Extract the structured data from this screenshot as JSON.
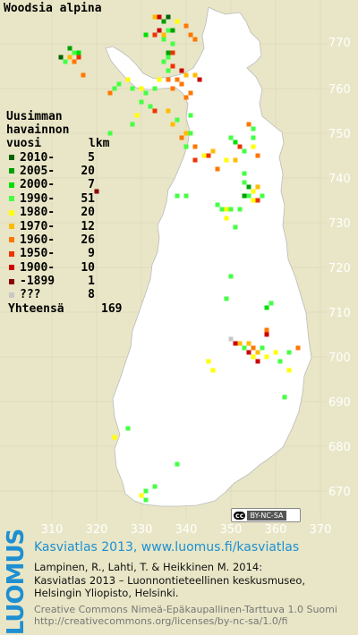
{
  "title": "Woodsia alpina",
  "legend": {
    "header": [
      "Uusimman",
      "havainnon"
    ],
    "col_year": "vuosi",
    "col_count": "lkm",
    "items": [
      {
        "label": "2010-",
        "count": "5",
        "color": "#006400"
      },
      {
        "label": "2005-",
        "count": "20",
        "color": "#00a000"
      },
      {
        "label": "2000-",
        "count": "7",
        "color": "#00e000"
      },
      {
        "label": "1990-",
        "count": "51",
        "color": "#44ff44"
      },
      {
        "label": "1980-",
        "count": "20",
        "color": "#ffff00"
      },
      {
        "label": "1970-",
        "count": "12",
        "color": "#ffbb00"
      },
      {
        "label": "1960-",
        "count": "26",
        "color": "#ff7700"
      },
      {
        "label": "1950-",
        "count": "9",
        "color": "#ee3300"
      },
      {
        "label": "1900-",
        "count": "10",
        "color": "#cc0000"
      },
      {
        "label": "-1899",
        "count": "1",
        "color": "#880000"
      },
      {
        "label": "???",
        "count": "8",
        "color": "#c8c8c8"
      }
    ],
    "total_label": "Yhteensä",
    "total_count": "169"
  },
  "y_ticks": [
    "770",
    "760",
    "750",
    "740",
    "730",
    "720",
    "710",
    "700",
    "690",
    "680",
    "670"
  ],
  "x_ticks": [
    "310",
    "320",
    "330",
    "340",
    "350",
    "360",
    "370"
  ],
  "license_badge": {
    "cc": "cc",
    "text": "BY-NC-SA"
  },
  "logo_text": "LUOMUS",
  "footer": {
    "title": "Kasviatlas 2013, www.luomus.fi/kasviatlas",
    "cite1": "Lampinen, R., Lahti, T. & Heikkinen M. 2014:",
    "cite2": "Kasviatlas 2013 – Luonnontieteellinen keskusmuseo,",
    "cite3": "Helsingin Yliopisto, Helsinki.",
    "license1": "Creative Commons Nimeä-Epäkaupallinen-Tarttuva 1.0 Suomi",
    "license2": "http://creativecommons.org/licenses/by-nc-sa/1.0/fi"
  },
  "observations": [
    {
      "e": 333,
      "n": 776,
      "c": 5
    },
    {
      "e": 334,
      "n": 776,
      "c": 8
    },
    {
      "e": 335,
      "n": 775,
      "c": 1
    },
    {
      "e": 336,
      "n": 776,
      "c": 0
    },
    {
      "e": 338,
      "n": 775,
      "c": 4
    },
    {
      "e": 340,
      "n": 774,
      "c": 6
    },
    {
      "e": 336,
      "n": 773,
      "c": 3
    },
    {
      "e": 337,
      "n": 773,
      "c": 1
    },
    {
      "e": 333,
      "n": 772,
      "c": 7
    },
    {
      "e": 334,
      "n": 773,
      "c": 8
    },
    {
      "e": 335,
      "n": 772,
      "c": 5
    },
    {
      "e": 341,
      "n": 772,
      "c": 6
    },
    {
      "e": 342,
      "n": 771,
      "c": 6
    },
    {
      "e": 331,
      "n": 772,
      "c": 2
    },
    {
      "e": 335,
      "n": 771,
      "c": 3
    },
    {
      "e": 337,
      "n": 770,
      "c": 3
    },
    {
      "e": 336,
      "n": 768,
      "c": 1
    },
    {
      "e": 336,
      "n": 767,
      "c": 3
    },
    {
      "e": 337,
      "n": 768,
      "c": 7
    },
    {
      "e": 335,
      "n": 766,
      "c": 3
    },
    {
      "e": 336,
      "n": 764,
      "c": 3
    },
    {
      "e": 337,
      "n": 765,
      "c": 7
    },
    {
      "e": 339,
      "n": 764,
      "c": 8
    },
    {
      "e": 336,
      "n": 762,
      "c": 6
    },
    {
      "e": 338,
      "n": 762,
      "c": 6
    },
    {
      "e": 339,
      "n": 761,
      "c": 6
    },
    {
      "e": 340,
      "n": 763,
      "c": 5
    },
    {
      "e": 342,
      "n": 763,
      "c": 5
    },
    {
      "e": 343,
      "n": 762,
      "c": 8
    },
    {
      "e": 337,
      "n": 760,
      "c": 6
    },
    {
      "e": 340,
      "n": 758,
      "c": 6
    },
    {
      "e": 341,
      "n": 759,
      "c": 6
    },
    {
      "e": 333,
      "n": 760,
      "c": 3
    },
    {
      "e": 334,
      "n": 762,
      "c": 4
    },
    {
      "e": 330,
      "n": 760,
      "c": 4
    },
    {
      "e": 331,
      "n": 759,
      "c": 3
    },
    {
      "e": 327,
      "n": 762,
      "c": 4
    },
    {
      "e": 328,
      "n": 760,
      "c": 3
    },
    {
      "e": 324,
      "n": 760,
      "c": 3
    },
    {
      "e": 325,
      "n": 761,
      "c": 3
    },
    {
      "e": 323,
      "n": 759,
      "c": 6
    },
    {
      "e": 317,
      "n": 763,
      "c": 6
    },
    {
      "e": 314,
      "n": 769,
      "c": 1
    },
    {
      "e": 315,
      "n": 768,
      "c": 3
    },
    {
      "e": 316,
      "n": 767,
      "c": 7
    },
    {
      "e": 314,
      "n": 767,
      "c": 5
    },
    {
      "e": 315,
      "n": 766,
      "c": 6
    },
    {
      "e": 316,
      "n": 768,
      "c": 2
    },
    {
      "e": 313,
      "n": 766,
      "c": 3
    },
    {
      "e": 312,
      "n": 767,
      "c": 0
    },
    {
      "e": 330,
      "n": 757,
      "c": 3
    },
    {
      "e": 332,
      "n": 756,
      "c": 3
    },
    {
      "e": 333,
      "n": 755,
      "c": 7
    },
    {
      "e": 329,
      "n": 754,
      "c": 4
    },
    {
      "e": 328,
      "n": 752,
      "c": 3
    },
    {
      "e": 336,
      "n": 755,
      "c": 5
    },
    {
      "e": 337,
      "n": 752,
      "c": 5
    },
    {
      "e": 338,
      "n": 753,
      "c": 3
    },
    {
      "e": 339,
      "n": 749,
      "c": 6
    },
    {
      "e": 340,
      "n": 750,
      "c": 5
    },
    {
      "e": 341,
      "n": 750,
      "c": 3
    },
    {
      "e": 342,
      "n": 747,
      "c": 6
    },
    {
      "e": 344,
      "n": 745,
      "c": 4
    },
    {
      "e": 345,
      "n": 745,
      "c": 7
    },
    {
      "e": 346,
      "n": 746,
      "c": 5
    },
    {
      "e": 347,
      "n": 742,
      "c": 6
    },
    {
      "e": 349,
      "n": 744,
      "c": 4
    },
    {
      "e": 350,
      "n": 749,
      "c": 3
    },
    {
      "e": 351,
      "n": 748,
      "c": 2
    },
    {
      "e": 352,
      "n": 747,
      "c": 7
    },
    {
      "e": 353,
      "n": 746,
      "c": 3
    },
    {
      "e": 354,
      "n": 752,
      "c": 6
    },
    {
      "e": 355,
      "n": 751,
      "c": 3
    },
    {
      "e": 355,
      "n": 749,
      "c": 3
    },
    {
      "e": 355,
      "n": 747,
      "c": 4
    },
    {
      "e": 356,
      "n": 745,
      "c": 6
    },
    {
      "e": 351,
      "n": 744,
      "c": 5
    },
    {
      "e": 353,
      "n": 741,
      "c": 3
    },
    {
      "e": 353,
      "n": 739,
      "c": 3
    },
    {
      "e": 354,
      "n": 738,
      "c": 1
    },
    {
      "e": 355,
      "n": 737,
      "c": 4
    },
    {
      "e": 356,
      "n": 738,
      "c": 5
    },
    {
      "e": 357,
      "n": 736,
      "c": 3
    },
    {
      "e": 355,
      "n": 735,
      "c": 4
    },
    {
      "e": 356,
      "n": 735,
      "c": 7
    },
    {
      "e": 354,
      "n": 736,
      "c": 3
    },
    {
      "e": 353,
      "n": 736,
      "c": 1
    },
    {
      "e": 348,
      "n": 733,
      "c": 3
    },
    {
      "e": 349,
      "n": 733,
      "c": 4
    },
    {
      "e": 350,
      "n": 733,
      "c": 3
    },
    {
      "e": 349,
      "n": 731,
      "c": 4
    },
    {
      "e": 352,
      "n": 733,
      "c": 3
    },
    {
      "e": 351,
      "n": 729,
      "c": 3
    },
    {
      "e": 347,
      "n": 734,
      "c": 3
    },
    {
      "e": 340,
      "n": 736,
      "c": 3
    },
    {
      "e": 338,
      "n": 736,
      "c": 3
    },
    {
      "e": 342,
      "n": 744,
      "c": 7
    },
    {
      "e": 340,
      "n": 747,
      "c": 3
    },
    {
      "e": 341,
      "n": 754,
      "c": 3
    },
    {
      "e": 323,
      "n": 750,
      "c": 3
    },
    {
      "e": 320,
      "n": 737,
      "c": 9
    },
    {
      "e": 350,
      "n": 718,
      "c": 3
    },
    {
      "e": 349,
      "n": 713,
      "c": 3
    },
    {
      "e": 358,
      "n": 711,
      "c": 2
    },
    {
      "e": 359,
      "n": 712,
      "c": 3
    },
    {
      "e": 358,
      "n": 706,
      "c": 6
    },
    {
      "e": 350,
      "n": 704,
      "c": 10
    },
    {
      "e": 351,
      "n": 703,
      "c": 8
    },
    {
      "e": 352,
      "n": 703,
      "c": 5
    },
    {
      "e": 353,
      "n": 702,
      "c": 3
    },
    {
      "e": 354,
      "n": 703,
      "c": 5
    },
    {
      "e": 354,
      "n": 701,
      "c": 8
    },
    {
      "e": 355,
      "n": 702,
      "c": 6
    },
    {
      "e": 356,
      "n": 701,
      "c": 5
    },
    {
      "e": 357,
      "n": 702,
      "c": 3
    },
    {
      "e": 355,
      "n": 700,
      "c": 4
    },
    {
      "e": 356,
      "n": 699,
      "c": 8
    },
    {
      "e": 358,
      "n": 700,
      "c": 4
    },
    {
      "e": 360,
      "n": 701,
      "c": 4
    },
    {
      "e": 361,
      "n": 699,
      "c": 3
    },
    {
      "e": 363,
      "n": 701,
      "c": 3
    },
    {
      "e": 363,
      "n": 697,
      "c": 4
    },
    {
      "e": 365,
      "n": 702,
      "c": 6
    },
    {
      "e": 362,
      "n": 691,
      "c": 3
    },
    {
      "e": 346,
      "n": 697,
      "c": 4
    },
    {
      "e": 345,
      "n": 699,
      "c": 4
    },
    {
      "e": 327,
      "n": 684,
      "c": 3
    },
    {
      "e": 324,
      "n": 682,
      "c": 4
    },
    {
      "e": 330,
      "n": 669,
      "c": 4
    },
    {
      "e": 331,
      "n": 668,
      "c": 3
    },
    {
      "e": 331,
      "n": 670,
      "c": 3
    },
    {
      "e": 333,
      "n": 671,
      "c": 3
    },
    {
      "e": 338,
      "n": 676,
      "c": 3
    },
    {
      "e": 358,
      "n": 705,
      "c": 8
    }
  ]
}
